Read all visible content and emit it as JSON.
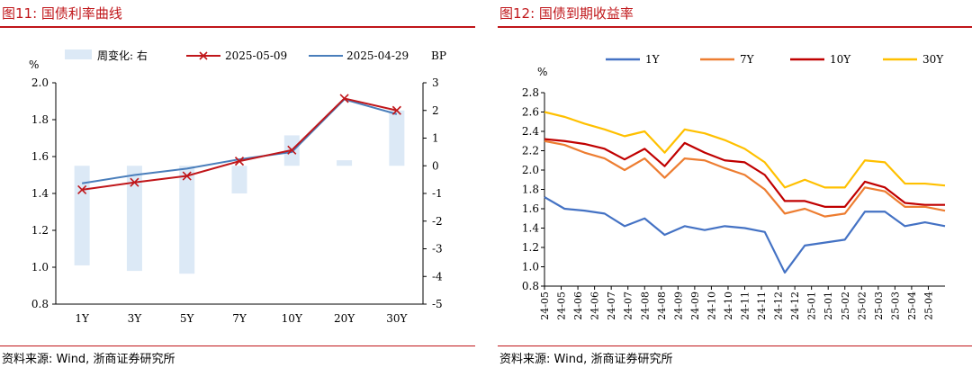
{
  "left_panel": {
    "title": "图11:   国债利率曲线",
    "source": "资料来源:  Wind,  浙商证券研究所"
  },
  "right_panel": {
    "title": "图12:   国债到期收益率",
    "source": "资料来源:  Wind,  浙商证券研究所"
  },
  "colors": {
    "accent_red": "#c0161a",
    "bar_fill": "#dce9f6",
    "series_red": "#c0161a",
    "series_blue": "#4a7ebb",
    "y1": "#4472c4",
    "y7": "#ed7d31",
    "y10": "#c00000",
    "y30": "#ffc000"
  },
  "chart_data": [
    {
      "type": "bar+line",
      "categories": [
        "1Y",
        "3Y",
        "5Y",
        "7Y",
        "10Y",
        "20Y",
        "30Y"
      ],
      "y_left_unit": "%",
      "y_right_unit": "BP",
      "ylim_left": [
        0.8,
        2.0
      ],
      "yticks_left": [
        "0.8",
        "1.0",
        "1.2",
        "1.4",
        "1.6",
        "1.8",
        "2.0"
      ],
      "ylim_right": [
        -5,
        3
      ],
      "yticks_right": [
        "-5",
        "-4",
        "-3",
        "-2",
        "-1",
        "0",
        "1",
        "2",
        "3"
      ],
      "legend": [
        "周变化:  右",
        "2025-05-09",
        "2025-04-29"
      ],
      "series": [
        {
          "name": "周变化:  右",
          "kind": "bar",
          "axis": "right",
          "values": [
            -3.6,
            -3.8,
            -3.9,
            -1.0,
            1.1,
            0.2,
            2.0
          ]
        },
        {
          "name": "2025-05-09",
          "kind": "line",
          "axis": "left",
          "values": [
            1.42,
            1.46,
            1.495,
            1.575,
            1.635,
            1.915,
            1.85
          ]
        },
        {
          "name": "2025-04-29",
          "kind": "line",
          "axis": "left",
          "values": [
            1.455,
            1.5,
            1.535,
            1.585,
            1.625,
            1.91,
            1.83
          ]
        }
      ]
    },
    {
      "type": "line",
      "y_unit": "%",
      "ylim": [
        0.8,
        2.8
      ],
      "yticks": [
        "0.8",
        "1.0",
        "1.2",
        "1.4",
        "1.6",
        "1.8",
        "2.0",
        "2.2",
        "2.4",
        "2.6",
        "2.8"
      ],
      "x_ticks": [
        "24-05",
        "24-05",
        "24-06",
        "24-06",
        "24-07",
        "24-07",
        "24-08",
        "24-08",
        "24-09",
        "24-09",
        "24-10",
        "24-10",
        "24-11",
        "24-11",
        "24-12",
        "24-12",
        "25-01",
        "25-01",
        "25-02",
        "25-02",
        "25-03",
        "25-03",
        "25-04",
        "25-04"
      ],
      "x_anchor_dates": [
        "2024-05-01",
        "2024-06-01",
        "2024-07-01",
        "2024-08-01",
        "2024-09-01",
        "2024-10-01",
        "2024-11-01",
        "2024-12-01",
        "2025-01-01",
        "2025-02-01",
        "2025-03-01",
        "2025-04-01",
        "2025-05-09"
      ],
      "series": [
        {
          "name": "1Y",
          "values": [
            1.72,
            1.6,
            1.58,
            1.55,
            1.42,
            1.5,
            1.33,
            1.42,
            1.38,
            1.42,
            1.4,
            1.36,
            0.94,
            1.22,
            1.25,
            1.28,
            1.57,
            1.57,
            1.42,
            1.46,
            1.42
          ]
        },
        {
          "name": "7Y",
          "values": [
            2.3,
            2.26,
            2.18,
            2.12,
            2.0,
            2.12,
            1.92,
            2.12,
            2.1,
            2.02,
            1.95,
            1.8,
            1.55,
            1.6,
            1.52,
            1.55,
            1.82,
            1.78,
            1.62,
            1.62,
            1.58
          ]
        },
        {
          "name": "10Y",
          "values": [
            2.32,
            2.3,
            2.27,
            2.22,
            2.11,
            2.22,
            2.04,
            2.28,
            2.18,
            2.1,
            2.08,
            1.95,
            1.68,
            1.68,
            1.62,
            1.62,
            1.88,
            1.82,
            1.66,
            1.64,
            1.64
          ]
        },
        {
          "name": "30Y",
          "values": [
            2.6,
            2.55,
            2.48,
            2.42,
            2.35,
            2.4,
            2.18,
            2.42,
            2.38,
            2.31,
            2.22,
            2.08,
            1.82,
            1.9,
            1.82,
            1.82,
            2.1,
            2.08,
            1.86,
            1.86,
            1.84
          ]
        }
      ]
    }
  ]
}
